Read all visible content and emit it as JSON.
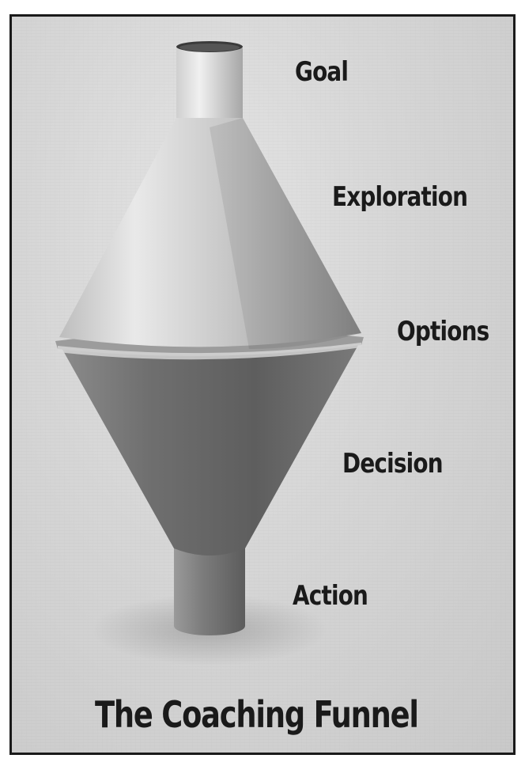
{
  "diagram": {
    "title": "The Coaching Funnel",
    "stages": [
      {
        "label": "Goal"
      },
      {
        "label": "Exploration"
      },
      {
        "label": "Options"
      },
      {
        "label": "Decision"
      },
      {
        "label": "Action"
      }
    ]
  }
}
